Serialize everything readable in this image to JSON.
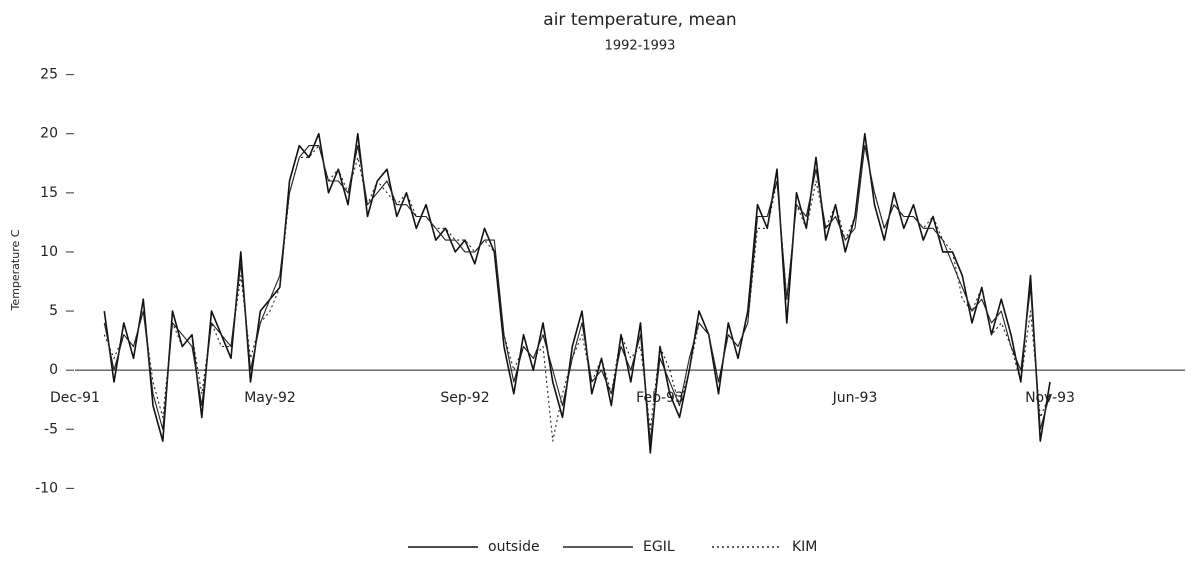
{
  "chart_data": {
    "type": "line",
    "title": "air temperature, mean",
    "subtitle": "1992-1993",
    "y_label": "Temperature C",
    "categories": [
      "Dec-91",
      null,
      null,
      null,
      null,
      null,
      null,
      null,
      null,
      null,
      null,
      null,
      null,
      null,
      null,
      null,
      null,
      null,
      null,
      null,
      "May-92",
      null,
      null,
      null,
      null,
      null,
      null,
      null,
      null,
      null,
      null,
      null,
      null,
      null,
      null,
      null,
      null,
      null,
      null,
      null,
      "Sep-92",
      null,
      null,
      null,
      null,
      null,
      null,
      null,
      null,
      null,
      null,
      null,
      null,
      null,
      null,
      null,
      null,
      null,
      null,
      null,
      "Feb-93",
      null,
      null,
      null,
      null,
      null,
      null,
      null,
      null,
      null,
      null,
      null,
      null,
      null,
      null,
      null,
      null,
      null,
      null,
      null,
      "Jun-93",
      null,
      null,
      null,
      null,
      null,
      null,
      null,
      null,
      null,
      null,
      null,
      null,
      null,
      null,
      null,
      null,
      null,
      null,
      null,
      "Nov-93",
      null,
      null,
      null,
      null,
      null,
      null,
      null,
      null,
      null,
      null,
      null,
      null,
      null
    ],
    "series": [
      {
        "name": "outside",
        "color": "#111111",
        "linestyle": "solid",
        "values": [
          null,
          null,
          null,
          5,
          -1,
          4,
          1,
          6,
          -3,
          -6,
          5,
          2,
          3,
          -4,
          5,
          3,
          1,
          10,
          -1,
          5,
          6,
          7,
          16,
          19,
          18,
          20,
          15,
          17,
          14,
          20,
          13,
          16,
          17,
          13,
          15,
          12,
          14,
          11,
          12,
          10,
          11,
          9,
          12,
          10,
          2,
          -2,
          3,
          0,
          4,
          -1,
          -4,
          2,
          5,
          -2,
          1,
          -3,
          3,
          -1,
          4,
          -7,
          2,
          -2,
          -4,
          0,
          5,
          3,
          -2,
          4,
          1,
          5,
          14,
          12,
          17,
          4,
          15,
          12,
          18,
          11,
          14,
          10,
          13,
          20,
          14,
          11,
          15,
          12,
          14,
          11,
          13,
          10,
          10,
          8,
          4,
          7,
          3,
          6,
          3,
          -1,
          8,
          -6,
          -1,
          null,
          null,
          null,
          null,
          null,
          null,
          null,
          null,
          null,
          null,
          null,
          null,
          null
        ]
      },
      {
        "name": "EGIL",
        "color": "#222222",
        "linestyle": "solid",
        "values": [
          null,
          null,
          null,
          4,
          0,
          3,
          2,
          5,
          -2,
          -5,
          4,
          3,
          2,
          -3,
          4,
          3,
          2,
          9,
          0,
          4,
          6,
          8,
          15,
          18,
          19,
          19,
          16,
          16,
          15,
          19,
          14,
          15,
          16,
          14,
          14,
          13,
          13,
          12,
          11,
          11,
          10,
          10,
          11,
          11,
          3,
          -1,
          2,
          1,
          3,
          0,
          -3,
          1,
          4,
          -1,
          0,
          -2,
          2,
          0,
          3,
          -6,
          1,
          -1,
          -3,
          1,
          4,
          3,
          -1,
          3,
          2,
          4,
          13,
          13,
          16,
          6,
          14,
          13,
          17,
          12,
          13,
          11,
          12,
          19,
          15,
          12,
          14,
          13,
          13,
          12,
          12,
          11,
          9,
          7,
          5,
          6,
          4,
          5,
          2,
          0,
          7,
          -5,
          -2,
          null,
          null,
          null,
          null,
          null,
          null,
          null,
          null,
          null,
          null,
          null,
          null,
          null
        ]
      },
      {
        "name": "KIM",
        "color": "#222222",
        "linestyle": "dotted",
        "values": [
          null,
          null,
          null,
          3,
          1,
          3,
          2,
          5,
          -1,
          -4,
          4,
          2,
          3,
          -2,
          4,
          2,
          2,
          8,
          1,
          4,
          5,
          7,
          15,
          18,
          18,
          19,
          16,
          17,
          15,
          18,
          14,
          16,
          15,
          14,
          15,
          13,
          13,
          12,
          12,
          11,
          11,
          10,
          11,
          10,
          3,
          0,
          2,
          1,
          2,
          -6,
          -2,
          1,
          3,
          -1,
          1,
          -2,
          3,
          1,
          2,
          -5,
          2,
          0,
          -3,
          0,
          4,
          3,
          -1,
          3,
          2,
          4,
          12,
          12,
          16,
          6,
          14,
          12,
          16,
          12,
          14,
          11,
          13,
          19,
          15,
          12,
          14,
          13,
          13,
          12,
          13,
          11,
          10,
          6,
          5,
          7,
          3,
          4,
          2,
          -1,
          5,
          -4,
          -2,
          null,
          null,
          null,
          null,
          null,
          null,
          null,
          null,
          null,
          null,
          null,
          null,
          null
        ]
      }
    ],
    "ylim": [
      -12,
      27
    ],
    "yticks": [
      -10,
      -5,
      0,
      5,
      10,
      15,
      20,
      25
    ],
    "legend": "bottom"
  }
}
